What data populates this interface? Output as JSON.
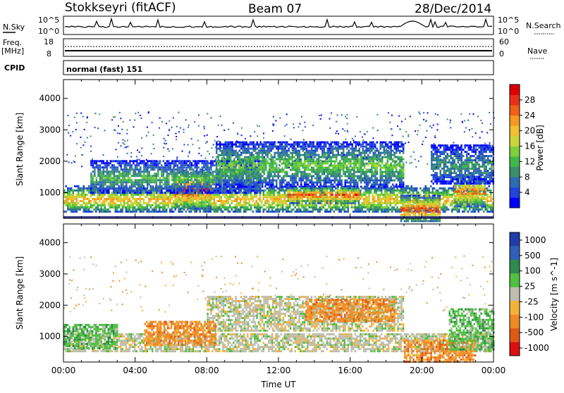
{
  "header": {
    "radar": "Stokkseyri (fitACF)",
    "beam": "Beam 07",
    "date": "28/Dec/2014"
  },
  "top_panels": {
    "nsky_label": "N.Sky",
    "nsky_ticks": [
      "10^5",
      "10^0"
    ],
    "nsearch_label": "N.Search",
    "nsearch_ticks": [
      "10^5",
      "10^0"
    ],
    "freq_label": "Freq.",
    "freq_unit": "[MHz]",
    "freq_ticks": [
      "18",
      "8"
    ],
    "nave_label": "Nave",
    "nave_ticks": [
      "60",
      "0"
    ],
    "cpid_label": "CPID",
    "cpid_text": "normal (fast) 151"
  },
  "colors": {
    "power": [
      "#0000ff",
      "#2244dd",
      "#2f6bb0",
      "#3a8f6a",
      "#3fb84a",
      "#7fcf3a",
      "#c8d63a",
      "#f0c030",
      "#f49a20",
      "#f06018",
      "#e83018",
      "#dd0000"
    ],
    "velocity": [
      "#1f3ea8",
      "#2f5fb8",
      "#2e8a4e",
      "#4fc040",
      "#bdbdb0",
      "#f5b23a",
      "#f08a25",
      "#e05a15",
      "#dd1010"
    ]
  },
  "chart_data": [
    {
      "type": "heatmap",
      "name": "power",
      "ylabel": "Slant Range [km]",
      "ylim": [
        180,
        4600
      ],
      "yticks": [
        "1000",
        "2000",
        "3000",
        "4000"
      ],
      "xlim": [
        0,
        24
      ],
      "colorbar": {
        "label": "Power [dB]",
        "ticks": [
          "4",
          "8",
          "12",
          "16",
          "20",
          "24",
          "28"
        ],
        "range": [
          0,
          32
        ]
      },
      "bands": [
        {
          "name": "main-low",
          "from": 0,
          "to": 24,
          "range": [
            500,
            1100
          ],
          "peak": 22
        },
        {
          "name": "morning-patch",
          "from": 6.2,
          "to": 8.2,
          "range": [
            600,
            1600
          ],
          "peak": 30
        },
        {
          "name": "upper-e1",
          "from": 1.5,
          "to": 11,
          "range": [
            1100,
            1900
          ],
          "peak": 12
        },
        {
          "name": "upper-e2",
          "from": 8.5,
          "to": 19,
          "range": [
            1300,
            2500
          ],
          "peak": 14
        },
        {
          "name": "noon-arc",
          "from": 12.5,
          "to": 16.5,
          "range": [
            800,
            1100
          ],
          "peak": 28
        },
        {
          "name": "evening-patch",
          "from": 18.8,
          "to": 21,
          "range": [
            200,
            800
          ],
          "peak": 28
        },
        {
          "name": "late-patch",
          "from": 21.8,
          "to": 23.5,
          "range": [
            700,
            1400
          ],
          "peak": 26
        },
        {
          "name": "late-upper",
          "from": 20.5,
          "to": 24,
          "range": [
            1400,
            2400
          ],
          "peak": 10
        }
      ]
    },
    {
      "type": "heatmap",
      "name": "velocity",
      "ylabel": "Slant Range [km]",
      "xlabel": "Time UT",
      "ylim": [
        180,
        4600
      ],
      "yticks": [
        "1000",
        "2000",
        "3000",
        "4000"
      ],
      "xlim": [
        0,
        24
      ],
      "xticks": [
        "00:00",
        "04:00",
        "08:00",
        "12:00",
        "16:00",
        "20:00",
        "00:00"
      ],
      "colorbar": {
        "label": "Velocity [m s^-1]",
        "ticks": [
          "1000",
          "500",
          "100",
          "25",
          "-25",
          "-100",
          "-500",
          "-1000"
        ]
      },
      "bands": [
        {
          "name": "ground-low",
          "from": 0,
          "to": 24,
          "range": [
            500,
            1100
          ],
          "class": 4
        },
        {
          "name": "gray-upper",
          "from": 8,
          "to": 19,
          "range": [
            1200,
            2300
          ],
          "class": 4
        },
        {
          "name": "morning-neg",
          "from": 4.5,
          "to": 8.5,
          "range": [
            700,
            1500
          ],
          "class": 6
        },
        {
          "name": "midday-neg",
          "from": 13.5,
          "to": 18.5,
          "range": [
            1500,
            2200
          ],
          "class": 6
        },
        {
          "name": "evening-neg",
          "from": 19,
          "to": 23,
          "range": [
            200,
            900
          ],
          "class": 6
        },
        {
          "name": "early-pos",
          "from": 0,
          "to": 3,
          "range": [
            600,
            1400
          ],
          "class": 3
        },
        {
          "name": "late-pos",
          "from": 21.5,
          "to": 24,
          "range": [
            600,
            1900
          ],
          "class": 3
        }
      ]
    }
  ]
}
